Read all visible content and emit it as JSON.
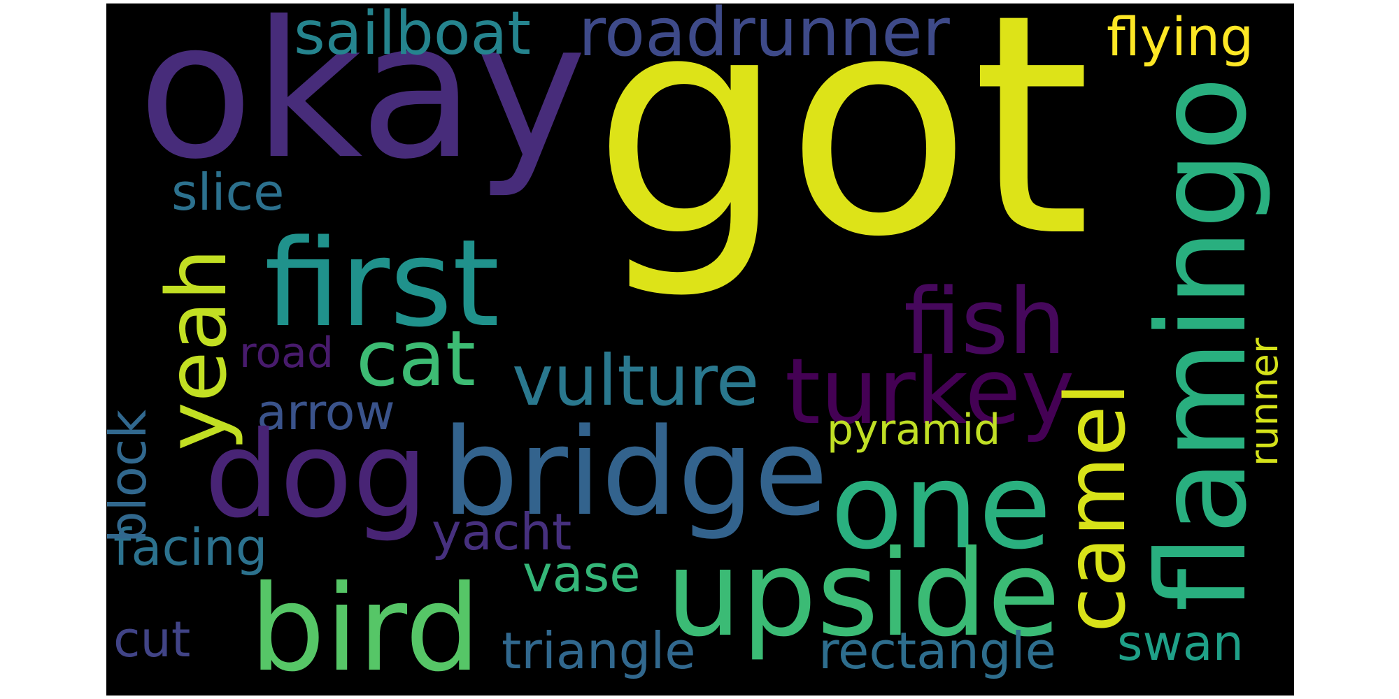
{
  "words": [
    {
      "id": "got",
      "text": "got",
      "color": "#dde318"
    },
    {
      "id": "okay",
      "text": "okay",
      "color": "#472c7a"
    },
    {
      "id": "first",
      "text": "first",
      "color": "#20928c"
    },
    {
      "id": "bridge",
      "text": "bridge",
      "color": "#33638d"
    },
    {
      "id": "dog",
      "text": "dog",
      "color": "#482475"
    },
    {
      "id": "one",
      "text": "one",
      "color": "#2ab07f"
    },
    {
      "id": "upside",
      "text": "upside",
      "color": "#3bbb75"
    },
    {
      "id": "bird",
      "text": "bird",
      "color": "#56c667"
    },
    {
      "id": "flamingo",
      "text": "flamingo",
      "color": "#29af7f"
    },
    {
      "id": "fish",
      "text": "fish",
      "color": "#46085c"
    },
    {
      "id": "turkey",
      "text": "turkey",
      "color": "#440154"
    },
    {
      "id": "camel",
      "text": "camel",
      "color": "#d8e219"
    },
    {
      "id": "cat",
      "text": "cat",
      "color": "#3dbc74"
    },
    {
      "id": "vulture",
      "text": "vulture",
      "color": "#2a788e"
    },
    {
      "id": "yeah",
      "text": "yeah",
      "color": "#c2df23"
    },
    {
      "id": "roadrunner",
      "text": "roadrunner",
      "color": "#3e4a89"
    },
    {
      "id": "sailboat",
      "text": "sailboat",
      "color": "#25848e"
    },
    {
      "id": "flying",
      "text": "flying",
      "color": "#fde725"
    },
    {
      "id": "slice",
      "text": "slice",
      "color": "#2c718e"
    },
    {
      "id": "road",
      "text": "road",
      "color": "#481b6d"
    },
    {
      "id": "arrow",
      "text": "arrow",
      "color": "#3a538b"
    },
    {
      "id": "block",
      "text": "block",
      "color": "#31688e"
    },
    {
      "id": "facing",
      "text": "facing",
      "color": "#2c728e"
    },
    {
      "id": "pyramid",
      "text": "pyramid",
      "color": "#c0df25"
    },
    {
      "id": "yacht",
      "text": "yacht",
      "color": "#46307e"
    },
    {
      "id": "vase",
      "text": "vase",
      "color": "#35b779"
    },
    {
      "id": "runner",
      "text": "runner",
      "color": "#d5e21a"
    },
    {
      "id": "cut",
      "text": "cut",
      "color": "#414487"
    },
    {
      "id": "triangle",
      "text": "triangle",
      "color": "#31688e"
    },
    {
      "id": "rectangle",
      "text": "rectangle",
      "color": "#2e6e8e"
    },
    {
      "id": "swan",
      "text": "swan",
      "color": "#1fa088"
    }
  ]
}
